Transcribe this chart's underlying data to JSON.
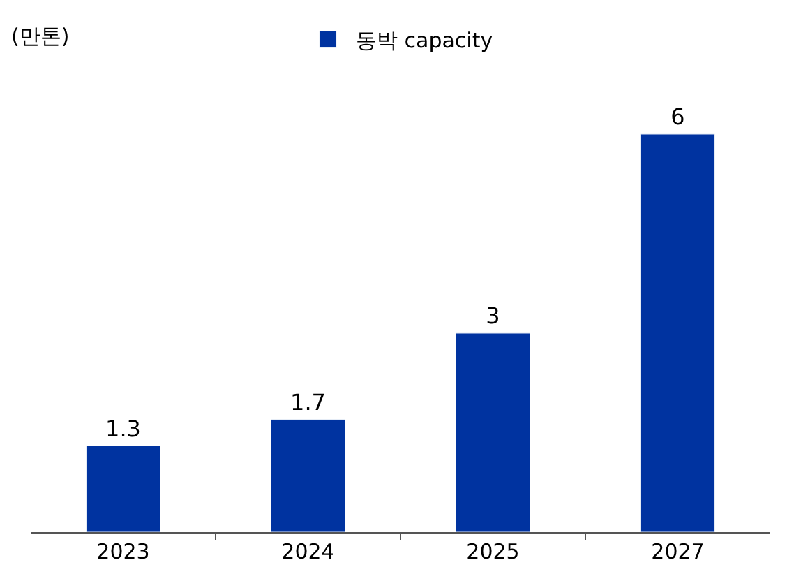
{
  "chart_data": {
    "type": "bar",
    "annotations": [
      "(만톤)"
    ],
    "categories": [
      "2023",
      "2024",
      "2025",
      "2027"
    ],
    "series": [
      {
        "name": "동박 capacity",
        "color": "#0033a0",
        "values": [
          1.3,
          1.7,
          3,
          6
        ]
      }
    ],
    "data_labels": true,
    "legend": "top"
  }
}
